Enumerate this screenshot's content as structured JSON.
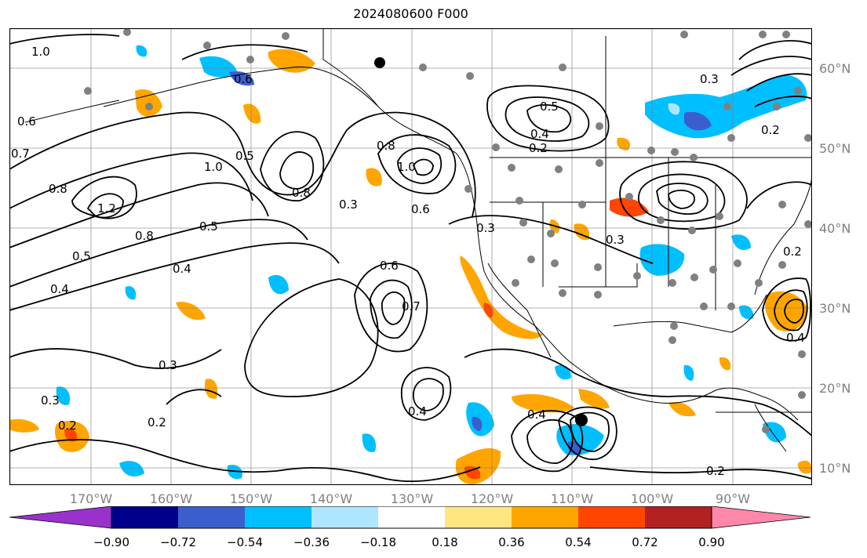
{
  "title": "2024080600 F000",
  "map": {
    "lat_labels": [
      "60°N",
      "50°N",
      "40°N",
      "30°N",
      "20°N",
      "10°N"
    ],
    "lon_labels": [
      "170°W",
      "160°W",
      "150°W",
      "140°W",
      "130°W",
      "120°W",
      "110°W",
      "100°W",
      "90°W"
    ],
    "contour_labels": [
      "1.0",
      "0.6",
      "0.7",
      "0.8",
      "1.2",
      "0.5",
      "0.4",
      "0.3",
      "0.2"
    ],
    "colors": {
      "strong_negative": "#2b4fd0",
      "negative": "#00bfff",
      "weak_negative": "#aee6ff",
      "weak_positive": "#ffe680",
      "positive": "#ffa500",
      "strong_positive": "#ff4500",
      "contour": "#000000",
      "grid": "#808080",
      "station": "#808080"
    }
  },
  "colorbar": {
    "tick_labels": [
      "−0.90",
      "−0.72",
      "−0.54",
      "−0.36",
      "−0.18",
      "0.18",
      "0.36",
      "0.54",
      "0.72",
      "0.90"
    ],
    "colors": [
      "#9932cc",
      "#00008b",
      "#3a5fcd",
      "#00bfff",
      "#aee6ff",
      "#ffffff",
      "#ffe680",
      "#ffa500",
      "#ff4500",
      "#b22222",
      "#ff88aa",
      "#ff88aa"
    ]
  }
}
